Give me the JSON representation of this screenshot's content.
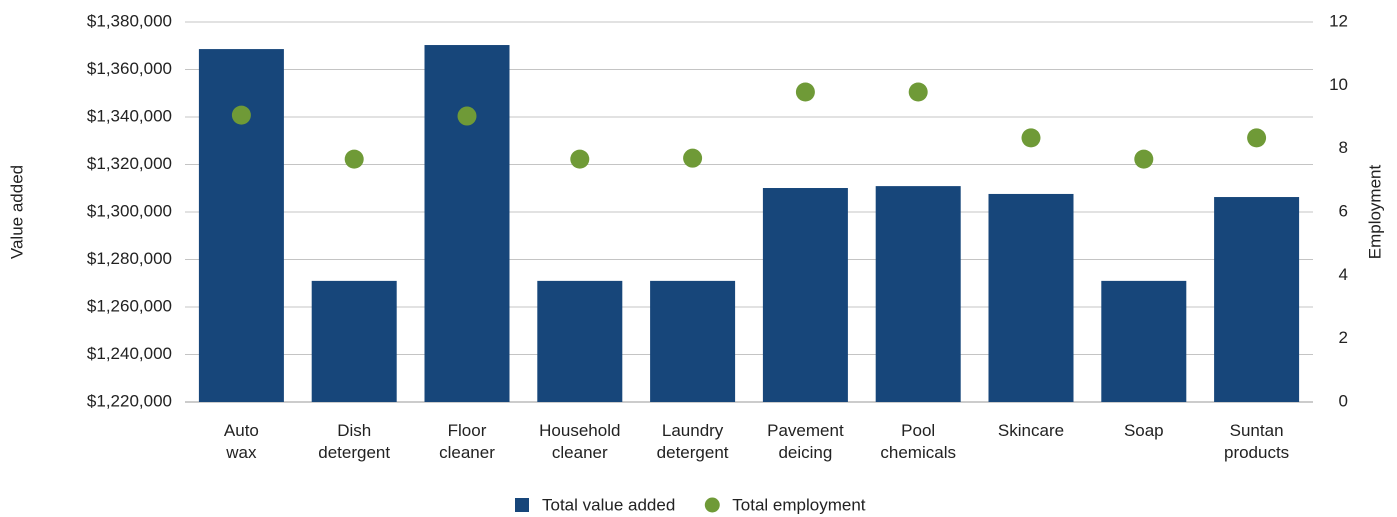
{
  "chart_data": {
    "type": "bar",
    "y_label": "Value added",
    "y2_label": "Employment",
    "categories": [
      "Auto wax",
      "Dish detergent",
      "Floor cleaner",
      "Household cleaner",
      "Laundry detergent",
      "Pavement deicing",
      "Pool chemicals",
      "Skincare",
      "Soap",
      "Suntan products"
    ],
    "series": [
      {
        "name": "Total value added",
        "type": "bar",
        "color": "#17467a",
        "axis": "y",
        "values": [
          1368600,
          1271000,
          1370300,
          1271000,
          1271000,
          1310100,
          1310900,
          1307600,
          1271000,
          1306300
        ]
      },
      {
        "name": "Total employment",
        "type": "scatter",
        "color": "#6f9a37",
        "axis": "y2",
        "values": [
          9.06,
          7.67,
          9.03,
          7.67,
          7.7,
          9.79,
          9.79,
          8.34,
          7.67,
          8.34
        ]
      }
    ],
    "ylim": [
      1220000,
      1380000
    ],
    "yticks": [
      {
        "value": 1220000,
        "label": "$1,220,000"
      },
      {
        "value": 1240000,
        "label": "$1,240,000"
      },
      {
        "value": 1260000,
        "label": "$1,260,000"
      },
      {
        "value": 1280000,
        "label": "$1,280,000"
      },
      {
        "value": 1300000,
        "label": "$1,300,000"
      },
      {
        "value": 1320000,
        "label": "$1,320,000"
      },
      {
        "value": 1340000,
        "label": "$1,340,000"
      },
      {
        "value": 1360000,
        "label": "$1,360,000"
      },
      {
        "value": 1380000,
        "label": "$1,380,000"
      }
    ],
    "y2lim": [
      0,
      12
    ],
    "y2ticks": [
      0,
      2,
      4,
      6,
      8,
      10,
      12
    ],
    "grid": true,
    "legend": "bottom"
  }
}
